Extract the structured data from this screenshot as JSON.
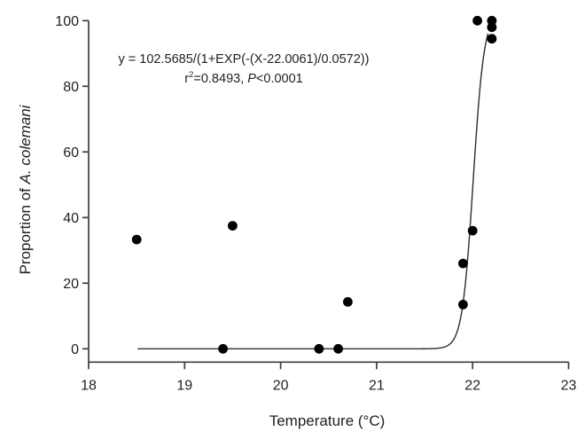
{
  "chart_data": {
    "type": "scatter",
    "title": "",
    "xlabel": "Temperature (°C)",
    "ylabel": "Proportion of A. colemani",
    "ylabel_prefix": "Proportion of ",
    "ylabel_italic": "A. colemani",
    "xlim": [
      18,
      23
    ],
    "ylim": [
      0,
      100
    ],
    "x_ticks": [
      "18",
      "19",
      "20",
      "21",
      "22",
      "23"
    ],
    "y_ticks": [
      "0",
      "20",
      "40",
      "60",
      "80",
      "100"
    ],
    "grid": false,
    "legend": "none",
    "points": [
      {
        "x": 18.5,
        "y": 33.3
      },
      {
        "x": 19.4,
        "y": 0
      },
      {
        "x": 19.5,
        "y": 37.5
      },
      {
        "x": 20.4,
        "y": 0
      },
      {
        "x": 20.6,
        "y": 0
      },
      {
        "x": 20.7,
        "y": 14.3
      },
      {
        "x": 21.9,
        "y": 13.5
      },
      {
        "x": 21.9,
        "y": 26
      },
      {
        "x": 22.0,
        "y": 36
      },
      {
        "x": 22.05,
        "y": 100
      },
      {
        "x": 22.2,
        "y": 100
      },
      {
        "x": 22.2,
        "y": 98
      },
      {
        "x": 22.2,
        "y": 94.5
      }
    ],
    "fit_curve": {
      "equation": "y = 102.5685/(1+EXP(-(X-22.0061)/0.0572))",
      "A": 102.5685,
      "x0": 22.0061,
      "b": 0.0572,
      "domain": [
        18.51,
        22.16
      ],
      "y_cap": 100
    },
    "annotation": {
      "line1": "y = 102.5685/(1+EXP(-(X-22.0061)/0.0572))",
      "line2": {
        "r": "r",
        "sup": "2",
        "mid": "=0.8493, ",
        "p": "P",
        "end": "<0.0001"
      }
    },
    "colors": {
      "point": "#000000",
      "curve": "#2e2e2e",
      "axis": "#3d3d3d",
      "text": "#1f1f1f",
      "background": "#ffffff"
    }
  }
}
